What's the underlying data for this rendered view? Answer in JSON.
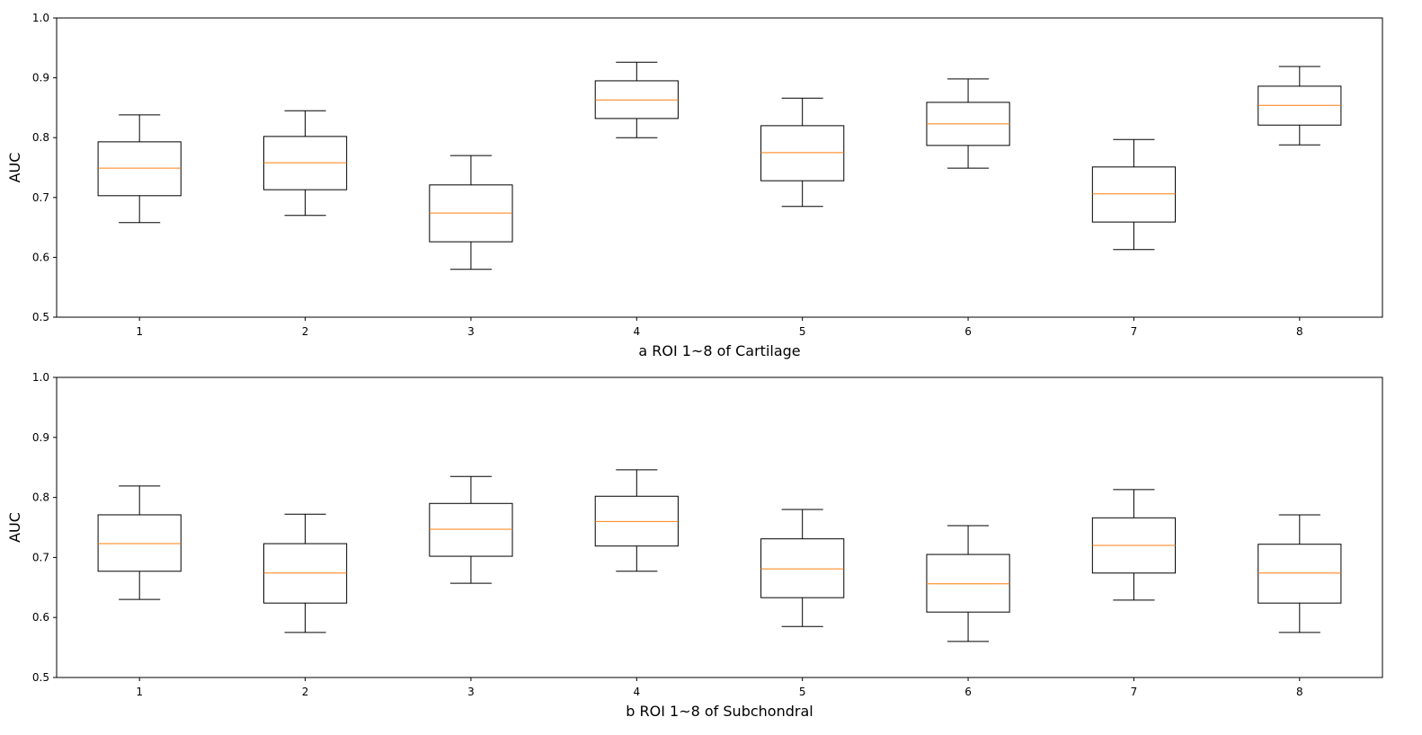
{
  "chart_data": [
    {
      "type": "box",
      "title": "",
      "xlabel": "a ROI 1~8 of Cartilage",
      "ylabel": "AUC",
      "ylim": [
        0.5,
        1.0
      ],
      "yticks": [
        "0.5",
        "0.6",
        "0.7",
        "0.8",
        "0.9",
        "1.0"
      ],
      "categories": [
        "1",
        "2",
        "3",
        "4",
        "5",
        "6",
        "7",
        "8"
      ],
      "grid": false,
      "boxes": [
        {
          "whisker_low": 0.658,
          "q1": 0.703,
          "median": 0.749,
          "q3": 0.793,
          "whisker_high": 0.838
        },
        {
          "whisker_low": 0.67,
          "q1": 0.713,
          "median": 0.758,
          "q3": 0.802,
          "whisker_high": 0.845
        },
        {
          "whisker_low": 0.58,
          "q1": 0.626,
          "median": 0.674,
          "q3": 0.721,
          "whisker_high": 0.77
        },
        {
          "whisker_low": 0.8,
          "q1": 0.832,
          "median": 0.863,
          "q3": 0.895,
          "whisker_high": 0.926
        },
        {
          "whisker_low": 0.685,
          "q1": 0.728,
          "median": 0.775,
          "q3": 0.82,
          "whisker_high": 0.866
        },
        {
          "whisker_low": 0.749,
          "q1": 0.787,
          "median": 0.823,
          "q3": 0.859,
          "whisker_high": 0.898
        },
        {
          "whisker_low": 0.613,
          "q1": 0.659,
          "median": 0.706,
          "q3": 0.751,
          "whisker_high": 0.797
        },
        {
          "whisker_low": 0.788,
          "q1": 0.821,
          "median": 0.854,
          "q3": 0.886,
          "whisker_high": 0.919
        }
      ]
    },
    {
      "type": "box",
      "title": "",
      "xlabel": "b ROI 1~8 of Subchondral",
      "ylabel": "AUC",
      "ylim": [
        0.5,
        1.0
      ],
      "yticks": [
        "0.5",
        "0.6",
        "0.7",
        "0.8",
        "0.9",
        "1.0"
      ],
      "categories": [
        "1",
        "2",
        "3",
        "4",
        "5",
        "6",
        "7",
        "8"
      ],
      "grid": false,
      "boxes": [
        {
          "whisker_low": 0.63,
          "q1": 0.677,
          "median": 0.723,
          "q3": 0.771,
          "whisker_high": 0.819
        },
        {
          "whisker_low": 0.575,
          "q1": 0.624,
          "median": 0.674,
          "q3": 0.723,
          "whisker_high": 0.772
        },
        {
          "whisker_low": 0.657,
          "q1": 0.702,
          "median": 0.747,
          "q3": 0.79,
          "whisker_high": 0.835
        },
        {
          "whisker_low": 0.677,
          "q1": 0.719,
          "median": 0.76,
          "q3": 0.802,
          "whisker_high": 0.846
        },
        {
          "whisker_low": 0.585,
          "q1": 0.633,
          "median": 0.681,
          "q3": 0.731,
          "whisker_high": 0.78
        },
        {
          "whisker_low": 0.56,
          "q1": 0.609,
          "median": 0.656,
          "q3": 0.705,
          "whisker_high": 0.753
        },
        {
          "whisker_low": 0.629,
          "q1": 0.674,
          "median": 0.72,
          "q3": 0.766,
          "whisker_high": 0.813
        },
        {
          "whisker_low": 0.575,
          "q1": 0.624,
          "median": 0.674,
          "q3": 0.722,
          "whisker_high": 0.771
        }
      ]
    }
  ],
  "colors": {
    "box": "#000000",
    "median": "#ff7f0e"
  }
}
